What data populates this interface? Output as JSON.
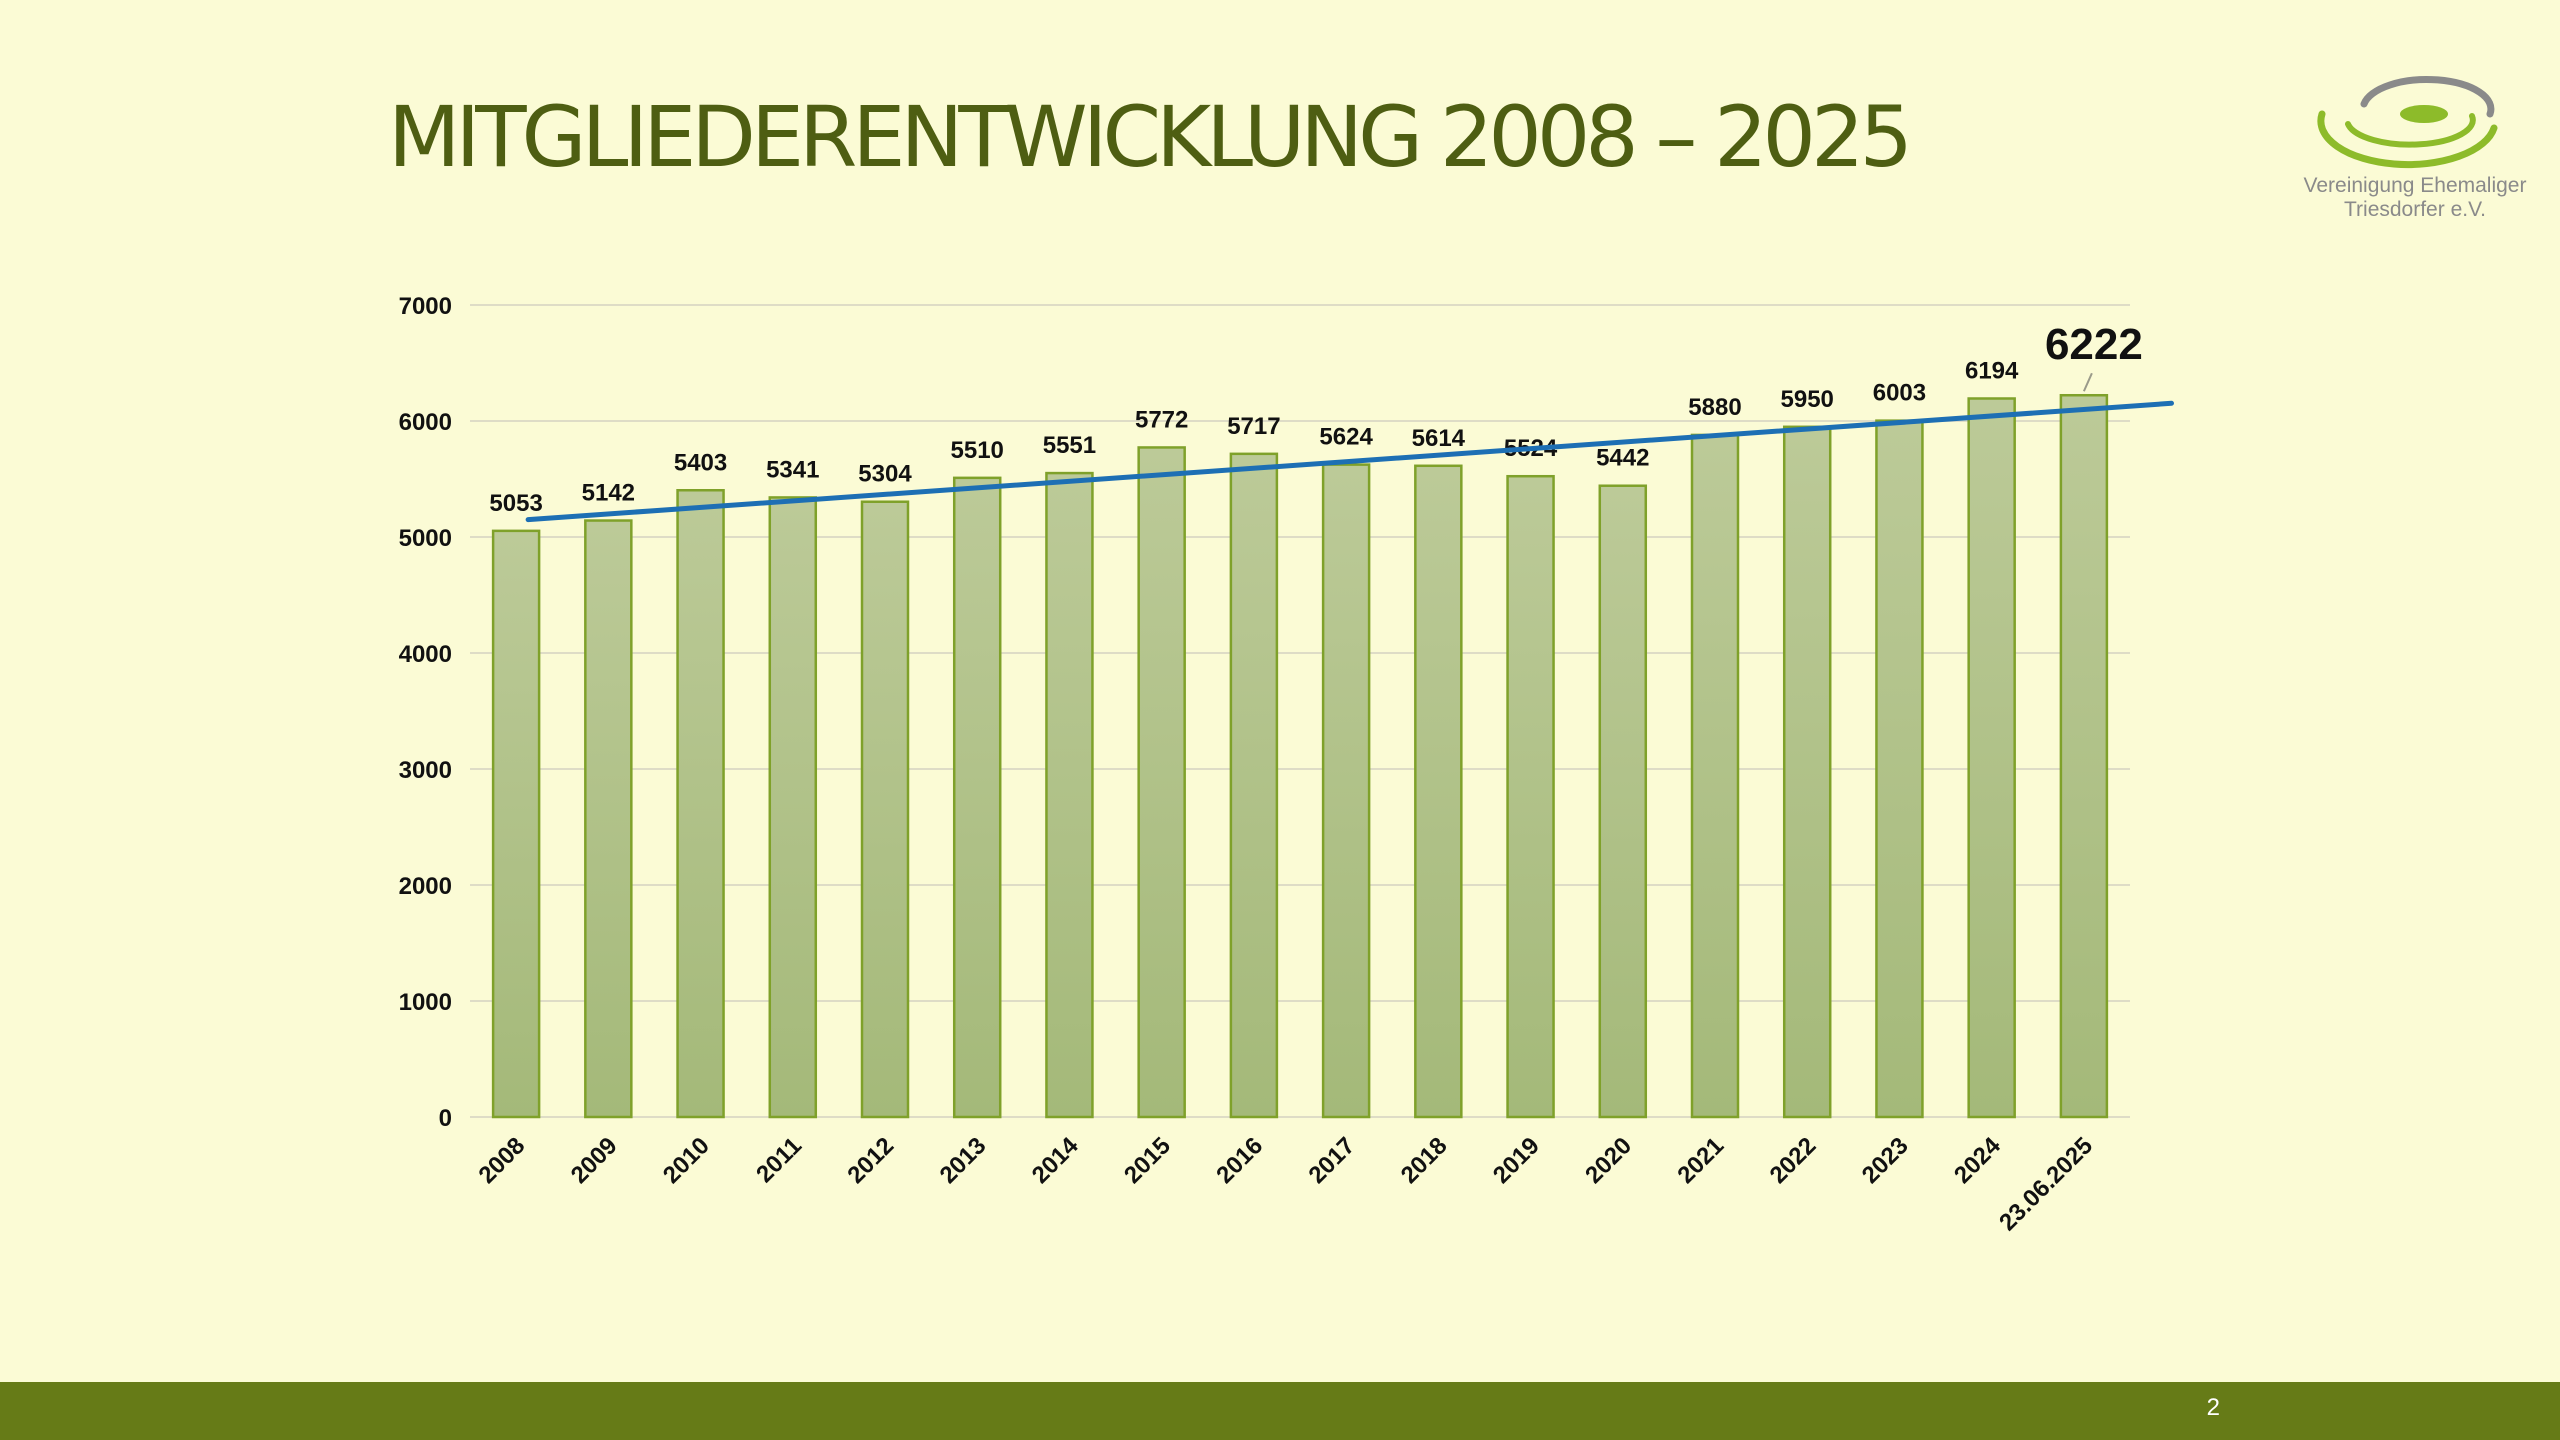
{
  "slide": {
    "title": "MITGLIEDERENTWICKLUNG 2008 – 2025",
    "page_number": "2"
  },
  "logo": {
    "name": "vereinigung-ehemaliger-triesdorfer-logo",
    "line1": "Vereinigung Ehemaliger",
    "line2": "Triesdorfer e.V."
  },
  "colors": {
    "background": "#fbfbd5",
    "title": "#4e5e12",
    "bar_fill_top": "#bcca98",
    "bar_fill_bottom": "#a4b979",
    "bar_stroke": "#7fa12a",
    "trendline": "#1d6fb4",
    "footer": "#667b17",
    "grid": "#dedcc6"
  },
  "chart_data": {
    "type": "bar",
    "title": "",
    "xlabel": "",
    "ylabel": "",
    "categories": [
      "2008",
      "2009",
      "2010",
      "2011",
      "2012",
      "2013",
      "2014",
      "2015",
      "2016",
      "2017",
      "2018",
      "2019",
      "2020",
      "2021",
      "2022",
      "2023",
      "2024",
      "23.06.2025"
    ],
    "values": [
      5053,
      5142,
      5403,
      5341,
      5304,
      5510,
      5551,
      5772,
      5717,
      5624,
      5614,
      5524,
      5442,
      5880,
      5950,
      6003,
      6194,
      6222
    ],
    "ylim": [
      0,
      7000
    ],
    "yticks": [
      0,
      1000,
      2000,
      3000,
      4000,
      5000,
      6000,
      7000
    ],
    "grid": true,
    "legend": "none",
    "highlighted_label": "6222",
    "trendline": {
      "type": "linear",
      "series": "values"
    }
  }
}
